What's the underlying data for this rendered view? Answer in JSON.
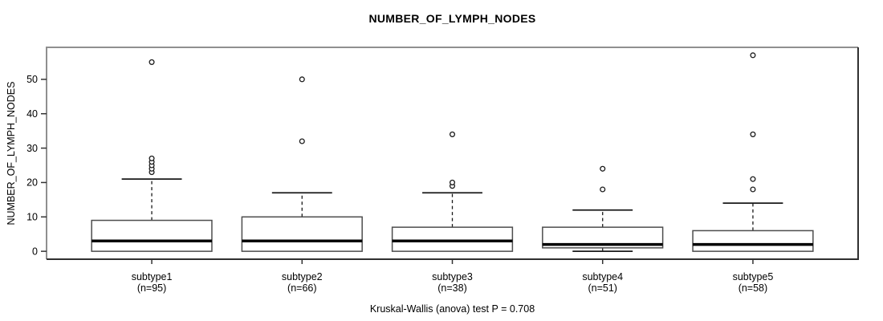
{
  "chart_data": {
    "type": "boxplot",
    "title": "NUMBER_OF_LYMPH_NODES",
    "ylabel": "NUMBER_OF_LYMPH_NODES",
    "xlabel": "",
    "annotation": "Kruskal-Wallis (anova) test P = 0.708",
    "ylim": [
      -2.3,
      59.3
    ],
    "yticks": [
      0,
      10,
      20,
      30,
      40,
      50
    ],
    "grid": false,
    "legend": "none",
    "box_color": "#ffffff",
    "line_color": "#000000",
    "groups": [
      {
        "label": "subtype1",
        "sublabel": "(n=95)",
        "n": 95,
        "whisker_low": 0,
        "q1": 0,
        "median": 3,
        "q3": 9,
        "whisker_high": 21,
        "outliers": [
          23,
          24,
          25,
          26,
          27,
          55
        ]
      },
      {
        "label": "subtype2",
        "sublabel": "(n=66)",
        "n": 66,
        "whisker_low": 0,
        "q1": 0,
        "median": 3,
        "q3": 10,
        "whisker_high": 17,
        "outliers": [
          32,
          50
        ]
      },
      {
        "label": "subtype3",
        "sublabel": "(n=38)",
        "n": 38,
        "whisker_low": 0,
        "q1": 0,
        "median": 3,
        "q3": 7,
        "whisker_high": 17,
        "outliers": [
          19,
          20,
          34
        ]
      },
      {
        "label": "subtype4",
        "sublabel": "(n=51)",
        "n": 51,
        "whisker_low": 0,
        "q1": 1,
        "median": 2,
        "q3": 7,
        "whisker_high": 12,
        "outliers": [
          18,
          24
        ]
      },
      {
        "label": "subtype5",
        "sublabel": "(n=58)",
        "n": 58,
        "whisker_low": 0,
        "q1": 0,
        "median": 2,
        "q3": 6,
        "whisker_high": 14,
        "outliers": [
          18,
          21,
          34,
          57
        ]
      }
    ]
  }
}
